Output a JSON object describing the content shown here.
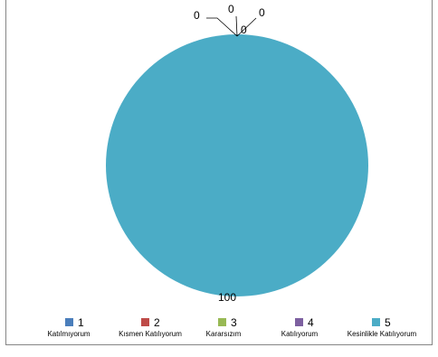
{
  "chart_data": {
    "type": "pie",
    "title": "",
    "categories": [
      "1",
      "2",
      "3",
      "4",
      "5"
    ],
    "category_labels": [
      "Katılmıyorum",
      "Kısmen Katılıyorum",
      "Kararsızım",
      "Katılıyorum",
      "Kesinlikle Katılıyorum"
    ],
    "values": [
      0,
      0,
      0,
      0,
      100
    ],
    "data_labels": [
      "0",
      "0",
      "0",
      "0",
      "100"
    ],
    "colors": [
      "#4a7ebb",
      "#be4b48",
      "#98b954",
      "#7d60a0",
      "#4bacc6"
    ],
    "legend": "bottom"
  }
}
